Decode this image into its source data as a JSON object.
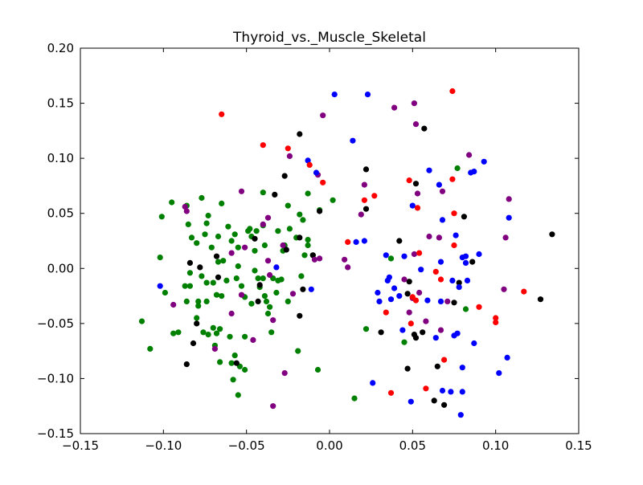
{
  "chart_data": {
    "type": "scatter",
    "title": "Thyroid_vs._Muscle_Skeletal",
    "xlabel": "",
    "ylabel": "",
    "xlim": [
      -0.15,
      0.15
    ],
    "ylim": [
      -0.15,
      0.2
    ],
    "x_ticks": [
      "−0.15",
      "−0.10",
      "−0.05",
      "0.00",
      "0.05",
      "0.10",
      "0.15"
    ],
    "x_tick_values": [
      -0.15,
      -0.1,
      -0.05,
      0.0,
      0.05,
      0.1,
      0.15
    ],
    "y_ticks": [
      "−0.15",
      "−0.10",
      "−0.05",
      "0.00",
      "0.05",
      "0.10",
      "0.15",
      "0.20"
    ],
    "y_tick_values": [
      -0.15,
      -0.1,
      -0.05,
      0.0,
      0.05,
      0.1,
      0.15,
      0.2
    ],
    "grid": false,
    "legend": "none",
    "series": [
      {
        "color": "#008000",
        "points": [
          [
            -0.095,
            0.06
          ],
          [
            -0.101,
            0.047
          ],
          [
            -0.102,
            0.01
          ],
          [
            -0.099,
            -0.022
          ],
          [
            -0.094,
            -0.059
          ],
          [
            -0.113,
            -0.048
          ],
          [
            -0.108,
            -0.073
          ],
          [
            -0.086,
            0.057
          ],
          [
            -0.085,
            0.04
          ],
          [
            -0.083,
            0.028
          ],
          [
            -0.08,
            0.023
          ],
          [
            -0.084,
            -0.004
          ],
          [
            -0.087,
            -0.016
          ],
          [
            -0.084,
            -0.016
          ],
          [
            -0.086,
            -0.03
          ],
          [
            -0.091,
            -0.058
          ],
          [
            -0.077,
            0.064
          ],
          [
            -0.073,
            0.048
          ],
          [
            -0.074,
            0.041
          ],
          [
            -0.065,
            0.059
          ],
          [
            -0.075,
            0.031
          ],
          [
            -0.067,
            0.029
          ],
          [
            -0.059,
            0.025
          ],
          [
            -0.061,
            0.038
          ],
          [
            -0.057,
            0.031
          ],
          [
            -0.049,
            0.034
          ],
          [
            -0.047,
            0.029
          ],
          [
            -0.044,
            0.034
          ],
          [
            -0.048,
            0.036
          ],
          [
            -0.04,
            0.039
          ],
          [
            -0.055,
            0.019
          ],
          [
            -0.045,
            0.016
          ],
          [
            -0.039,
            0.021
          ],
          [
            -0.031,
            0.034
          ],
          [
            -0.071,
            0.019
          ],
          [
            -0.067,
            0.006
          ],
          [
            -0.064,
            0.007
          ],
          [
            -0.074,
            -0.013
          ],
          [
            -0.077,
            -0.007
          ],
          [
            -0.07,
            -0.013
          ],
          [
            -0.062,
            -0.011
          ],
          [
            -0.056,
            -0.009
          ],
          [
            -0.055,
            0.002
          ],
          [
            -0.045,
            -0.002
          ],
          [
            -0.043,
            -0.009
          ],
          [
            -0.042,
            -0.017
          ],
          [
            -0.04,
            -0.009
          ],
          [
            -0.053,
            -0.016
          ],
          [
            -0.051,
            -0.026
          ],
          [
            -0.047,
            -0.032
          ],
          [
            -0.039,
            -0.025
          ],
          [
            -0.038,
            -0.03
          ],
          [
            -0.036,
            -0.035
          ],
          [
            -0.037,
            -0.041
          ],
          [
            -0.031,
            -0.011
          ],
          [
            -0.032,
            -0.022
          ],
          [
            -0.029,
            -0.01
          ],
          [
            -0.034,
            -0.009
          ],
          [
            -0.079,
            -0.03
          ],
          [
            -0.074,
            -0.03
          ],
          [
            -0.068,
            -0.024
          ],
          [
            -0.065,
            -0.025
          ],
          [
            -0.069,
            -0.07
          ],
          [
            -0.07,
            -0.054
          ],
          [
            -0.068,
            -0.059
          ],
          [
            -0.066,
            -0.055
          ],
          [
            -0.06,
            -0.062
          ],
          [
            -0.057,
            -0.079
          ],
          [
            -0.066,
            -0.085
          ],
          [
            -0.059,
            -0.086
          ],
          [
            -0.054,
            -0.089
          ],
          [
            -0.051,
            -0.092
          ],
          [
            -0.058,
            -0.101
          ],
          [
            -0.055,
            -0.115
          ],
          [
            -0.051,
            -0.062
          ],
          [
            -0.079,
            -0.034
          ],
          [
            -0.08,
            -0.045
          ],
          [
            -0.073,
            -0.06
          ],
          [
            -0.076,
            -0.058
          ],
          [
            -0.035,
            -0.058
          ],
          [
            -0.04,
            0.069
          ],
          [
            -0.025,
            0.057
          ],
          [
            -0.013,
            0.068
          ],
          [
            -0.006,
            0.053
          ],
          [
            0.002,
            0.062
          ],
          [
            -0.018,
            0.049
          ],
          [
            -0.016,
            0.044
          ],
          [
            -0.013,
            0.026
          ],
          [
            -0.013,
            0.021
          ],
          [
            -0.015,
            0.012
          ],
          [
            -0.02,
            0.028
          ],
          [
            -0.01,
            0.012
          ],
          [
            -0.017,
            -0.007
          ],
          [
            -0.019,
            -0.075
          ],
          [
            -0.007,
            -0.092
          ],
          [
            -0.027,
            0.021
          ],
          [
            -0.024,
            0.036
          ],
          [
            -0.028,
            0.016
          ],
          [
            -0.025,
            -0.03
          ],
          [
            0.022,
            -0.055
          ],
          [
            0.037,
            0.009
          ],
          [
            0.045,
            -0.067
          ],
          [
            0.077,
            0.091
          ],
          [
            0.082,
            -0.037
          ],
          [
            0.015,
            -0.118
          ]
        ]
      },
      {
        "color": "#000000",
        "points": [
          [
            -0.084,
            0.005
          ],
          [
            -0.078,
            0.001
          ],
          [
            -0.068,
            0.011
          ],
          [
            -0.067,
            -0.008
          ],
          [
            -0.08,
            -0.05
          ],
          [
            -0.082,
            -0.068
          ],
          [
            -0.086,
            -0.087
          ],
          [
            -0.056,
            -0.086
          ],
          [
            -0.045,
            0.027
          ],
          [
            -0.043,
            -0.03
          ],
          [
            -0.042,
            -0.015
          ],
          [
            -0.033,
            0.067
          ],
          [
            -0.027,
            0.084
          ],
          [
            -0.018,
            0.122
          ],
          [
            -0.026,
            0.017
          ],
          [
            -0.018,
            0.028
          ],
          [
            -0.01,
            0.012
          ],
          [
            -0.006,
            0.052
          ],
          [
            -0.016,
            -0.019
          ],
          [
            -0.018,
            -0.043
          ],
          [
            0.022,
            0.09
          ],
          [
            0.022,
            0.054
          ],
          [
            0.042,
            0.025
          ],
          [
            0.031,
            -0.058
          ],
          [
            0.047,
            -0.023
          ],
          [
            0.052,
            0.077
          ],
          [
            0.057,
            0.127
          ],
          [
            0.048,
            -0.012
          ],
          [
            0.051,
            -0.06
          ],
          [
            0.052,
            -0.063
          ],
          [
            0.056,
            -0.058
          ],
          [
            0.047,
            -0.091
          ],
          [
            0.063,
            -0.12
          ],
          [
            0.069,
            -0.124
          ],
          [
            0.065,
            -0.089
          ],
          [
            0.075,
            -0.031
          ],
          [
            0.078,
            -0.013
          ],
          [
            0.081,
            0.047
          ],
          [
            0.086,
            0.006
          ],
          [
            0.127,
            -0.028
          ],
          [
            0.134,
            0.031
          ]
        ]
      },
      {
        "color": "#800080",
        "points": [
          [
            -0.087,
            0.056
          ],
          [
            -0.086,
            0.052
          ],
          [
            -0.094,
            -0.033
          ],
          [
            -0.069,
            -0.073
          ],
          [
            -0.059,
            0.014
          ],
          [
            -0.059,
            -0.041
          ],
          [
            -0.051,
            0.019
          ],
          [
            -0.053,
            0.07
          ],
          [
            -0.053,
            -0.024
          ],
          [
            -0.046,
            -0.065
          ],
          [
            -0.04,
            0.04
          ],
          [
            -0.037,
            0.046
          ],
          [
            -0.037,
            0.007
          ],
          [
            -0.036,
            -0.006
          ],
          [
            -0.034,
            -0.047
          ],
          [
            -0.034,
            -0.125
          ],
          [
            -0.027,
            -0.095
          ],
          [
            -0.028,
            0.021
          ],
          [
            -0.022,
            -0.023
          ],
          [
            -0.024,
            0.102
          ],
          [
            -0.007,
            0.085
          ],
          [
            -0.004,
            0.139
          ],
          [
            -0.006,
            0.009
          ],
          [
            -0.009,
            0.008
          ],
          [
            0.009,
            0.008
          ],
          [
            0.011,
            0.001
          ],
          [
            0.019,
            0.049
          ],
          [
            0.021,
            0.076
          ],
          [
            0.039,
            0.146
          ],
          [
            0.051,
            0.15
          ],
          [
            0.052,
            0.131
          ],
          [
            0.053,
            0.068
          ],
          [
            0.045,
            -0.01
          ],
          [
            0.051,
            0.013
          ],
          [
            0.05,
            -0.027
          ],
          [
            0.048,
            -0.04
          ],
          [
            0.054,
            -0.022
          ],
          [
            0.058,
            -0.048
          ],
          [
            0.06,
            0.029
          ],
          [
            0.066,
            0.028
          ],
          [
            0.068,
            0.07
          ],
          [
            0.067,
            -0.056
          ],
          [
            0.071,
            -0.03
          ],
          [
            0.084,
            0.103
          ],
          [
            0.105,
            -0.019
          ],
          [
            0.106,
            0.028
          ],
          [
            0.108,
            0.063
          ]
        ]
      },
      {
        "color": "#0000ff",
        "points": [
          [
            -0.102,
            -0.016
          ],
          [
            -0.032,
            0.001
          ],
          [
            -0.013,
            0.098
          ],
          [
            -0.008,
            0.087
          ],
          [
            -0.011,
            -0.019
          ],
          [
            0.003,
            0.158
          ],
          [
            0.014,
            0.116
          ],
          [
            0.016,
            0.024
          ],
          [
            0.021,
            0.025
          ],
          [
            0.023,
            0.158
          ],
          [
            0.029,
            -0.022
          ],
          [
            0.03,
            -0.03
          ],
          [
            0.034,
            0.012
          ],
          [
            0.036,
            -0.008
          ],
          [
            0.035,
            -0.011
          ],
          [
            0.042,
            -0.025
          ],
          [
            0.044,
            -0.056
          ],
          [
            0.045,
            0.011
          ],
          [
            0.05,
            0.057
          ],
          [
            0.049,
            -0.121
          ],
          [
            0.055,
            -0.001
          ],
          [
            0.06,
            0.089
          ],
          [
            0.064,
            -0.063
          ],
          [
            0.066,
            0.076
          ],
          [
            0.068,
            0.044
          ],
          [
            0.067,
            0.006
          ],
          [
            0.067,
            -0.03
          ],
          [
            0.068,
            -0.111
          ],
          [
            0.074,
            -0.011
          ],
          [
            0.075,
            -0.061
          ],
          [
            0.076,
            0.03
          ],
          [
            0.077,
            -0.059
          ],
          [
            0.078,
            -0.017
          ],
          [
            0.08,
            0.01
          ],
          [
            0.082,
            0.005
          ],
          [
            0.082,
            0.011
          ],
          [
            0.083,
            -0.011
          ],
          [
            0.085,
            0.087
          ],
          [
            0.087,
            0.088
          ],
          [
            0.087,
            -0.068
          ],
          [
            0.09,
            0.013
          ],
          [
            0.093,
            0.097
          ],
          [
            0.08,
            -0.09
          ],
          [
            0.08,
            -0.112
          ],
          [
            0.073,
            -0.112
          ],
          [
            0.079,
            -0.133
          ],
          [
            0.102,
            -0.095
          ],
          [
            0.107,
            -0.081
          ],
          [
            0.108,
            0.046
          ],
          [
            0.026,
            -0.104
          ],
          [
            0.039,
            -0.018
          ],
          [
            0.037,
            -0.028
          ],
          [
            0.059,
            -0.029
          ]
        ]
      },
      {
        "color": "#ff0000",
        "points": [
          [
            -0.065,
            0.14
          ],
          [
            -0.04,
            0.112
          ],
          [
            -0.025,
            0.109
          ],
          [
            -0.012,
            0.094
          ],
          [
            -0.004,
            0.078
          ],
          [
            0.011,
            0.024
          ],
          [
            0.021,
            0.062
          ],
          [
            0.027,
            0.066
          ],
          [
            0.034,
            -0.04
          ],
          [
            0.037,
            -0.113
          ],
          [
            0.048,
            0.08
          ],
          [
            0.049,
            -0.05
          ],
          [
            0.05,
            -0.026
          ],
          [
            0.052,
            -0.029
          ],
          [
            0.053,
            0.055
          ],
          [
            0.054,
            0.014
          ],
          [
            0.058,
            -0.109
          ],
          [
            0.064,
            -0.003
          ],
          [
            0.067,
            -0.01
          ],
          [
            0.069,
            -0.083
          ],
          [
            0.074,
            0.081
          ],
          [
            0.074,
            0.161
          ],
          [
            0.075,
            0.05
          ],
          [
            0.075,
            0.021
          ],
          [
            0.09,
            -0.035
          ],
          [
            0.1,
            -0.045
          ],
          [
            0.1,
            -0.049
          ],
          [
            0.117,
            -0.021
          ]
        ]
      }
    ]
  }
}
